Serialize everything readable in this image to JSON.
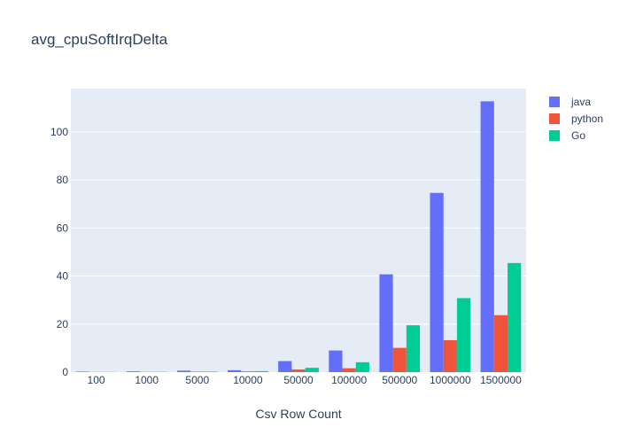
{
  "chart_data": {
    "type": "bar",
    "title": "avg_cpuSoftIrqDelta",
    "xlabel": "Csv Row Count",
    "ylabel": "",
    "categories": [
      "100",
      "1000",
      "5000",
      "10000",
      "50000",
      "100000",
      "500000",
      "1000000",
      "1500000"
    ],
    "ylim": [
      0,
      118
    ],
    "yticks": [
      0,
      20,
      40,
      60,
      80,
      100
    ],
    "grid": true,
    "legend": "top-right",
    "plot_background": "#e5ecf6",
    "series": [
      {
        "name": "java",
        "color": "#636efa",
        "values": [
          0.2,
          0.3,
          0.6,
          0.8,
          4.6,
          9.0,
          40.7,
          74.6,
          112.7
        ]
      },
      {
        "name": "python",
        "color": "#ef553b",
        "values": [
          0.05,
          0.1,
          0.2,
          0.3,
          1.1,
          1.6,
          10.1,
          13.3,
          23.7
        ]
      },
      {
        "name": "Go",
        "color": "#00cc96",
        "values": [
          0.05,
          0.1,
          0.2,
          0.4,
          1.8,
          4.1,
          19.5,
          30.8,
          45.4
        ]
      }
    ]
  }
}
